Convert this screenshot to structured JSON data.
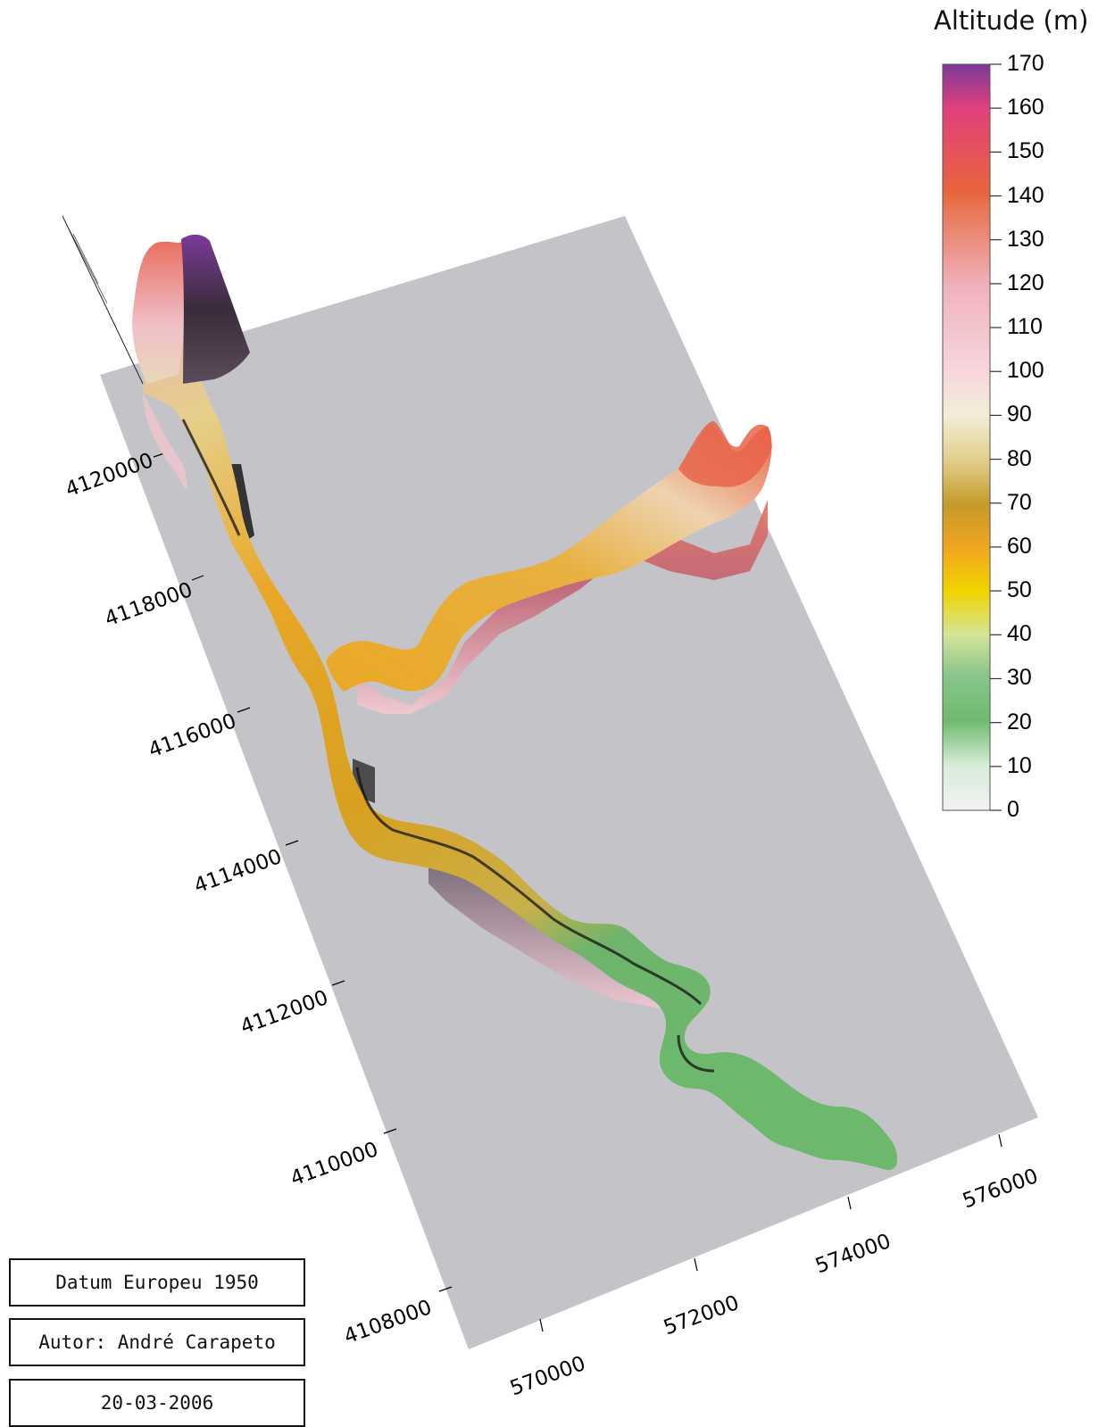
{
  "legend": {
    "title": "Altitude (m)",
    "ticks": [
      "170",
      "160",
      "150",
      "140",
      "130",
      "120",
      "110",
      "100",
      "90",
      "80",
      "70",
      "60",
      "50",
      "40",
      "30",
      "20",
      "10",
      "0"
    ],
    "colors": {
      "0": "#f2f2f2",
      "20": "#6fba6f",
      "40": "#d5e49a",
      "50": "#f1d400",
      "60": "#f0a520",
      "70": "#c59a2a",
      "80": "#e2cf8c",
      "90": "#f3eed8",
      "100": "#f7d5dc",
      "120": "#f0b3be",
      "140": "#e8643c",
      "160": "#e2407c",
      "170": "#7a3a9a"
    }
  },
  "axes": {
    "y_ticks": [
      "4120000",
      "4118000",
      "4116000",
      "4114000",
      "4112000",
      "4110000",
      "4108000"
    ],
    "x_ticks": [
      "570000",
      "572000",
      "574000",
      "576000"
    ]
  },
  "info": {
    "datum": "Datum Europeu 1950",
    "author": "Autor: André Carapeto",
    "date": "20-03-2006"
  },
  "colors": {
    "plane": "#c4c4c8",
    "background": "#ffffff"
  }
}
